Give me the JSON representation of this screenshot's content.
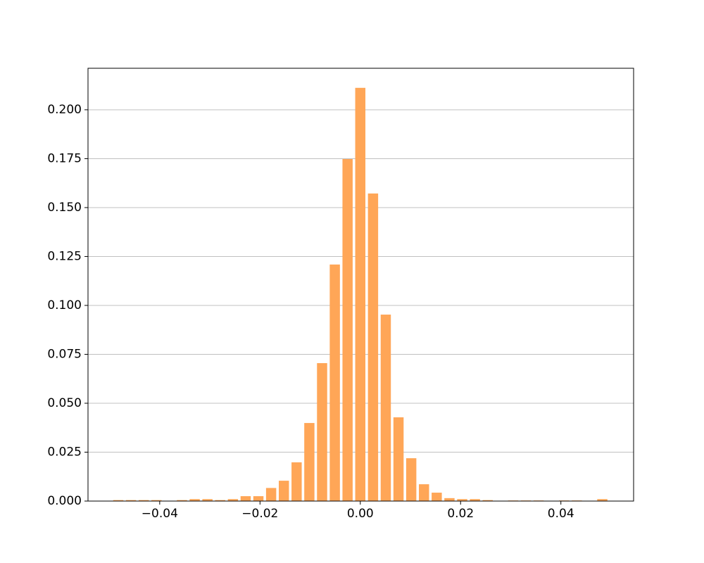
{
  "chart_data": {
    "type": "histogram",
    "bins": [
      -0.04953,
      -0.04699,
      -0.04445,
      -0.04191,
      -0.03937,
      -0.03683,
      -0.03429,
      -0.03175,
      -0.02921,
      -0.02667,
      -0.02413,
      -0.02159,
      -0.01905,
      -0.01651,
      -0.01397,
      -0.01143,
      -0.00889,
      -0.00635,
      -0.00381,
      -0.00127,
      0.00127,
      0.00381,
      0.00635,
      0.00889,
      0.01143,
      0.01397,
      0.01651,
      0.01905,
      0.02159,
      0.02413,
      0.02667,
      0.02921,
      0.03175,
      0.03429,
      0.03683,
      0.03937,
      0.04191,
      0.04445,
      0.04699,
      0.04953
    ],
    "values": [
      0.0005,
      0.0005,
      0.0005,
      0.0005,
      0,
      0.0005,
      0.001,
      0.001,
      0.0005,
      0.001,
      0.0025,
      0.0025,
      0.0067,
      0.0104,
      0.0198,
      0.0399,
      0.0705,
      0.1209,
      0.1748,
      0.2112,
      0.1572,
      0.0953,
      0.0428,
      0.0219,
      0.0086,
      0.0043,
      0.0015,
      0.001,
      0.001,
      0.0005,
      0,
      0.0003,
      0.0003,
      0.0003,
      0,
      0.0003,
      0.0003,
      0,
      0.001
    ],
    "color": "#ffa657",
    "xlim": [
      -0.0543,
      0.0545
    ],
    "ylim": [
      0,
      0.2212
    ],
    "xticks": [
      {
        "value": -0.04,
        "label": "−0.04"
      },
      {
        "value": -0.02,
        "label": "−0.02"
      },
      {
        "value": 0,
        "label": "0.00"
      },
      {
        "value": 0.02,
        "label": "0.02"
      },
      {
        "value": 0.04,
        "label": "0.04"
      }
    ],
    "yticks": [
      {
        "value": 0,
        "label": "0.000"
      },
      0.025,
      {
        "value": 0.05,
        "label": "0.050"
      },
      0.075,
      {
        "value": 0.1,
        "label": "0.100"
      },
      0.125,
      {
        "value": 0.15,
        "label": "0.150"
      },
      0.175,
      {
        "value": 0.2,
        "label": "0.200"
      }
    ],
    "grid": true
  }
}
